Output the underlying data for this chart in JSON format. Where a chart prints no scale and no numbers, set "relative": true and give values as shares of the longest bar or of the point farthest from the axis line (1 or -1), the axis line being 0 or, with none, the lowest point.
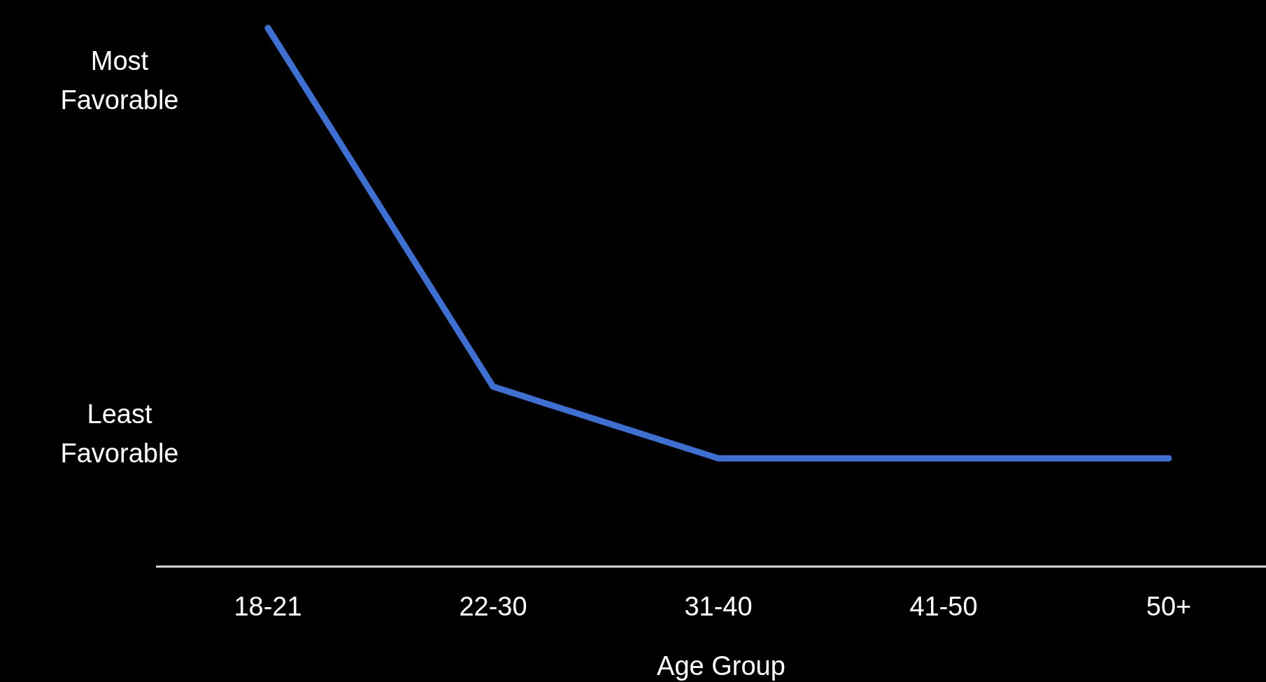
{
  "chart_data": {
    "type": "line",
    "relative": true,
    "xlabel": "Age Group",
    "categories": [
      "18-21",
      "22-30",
      "31-40",
      "41-50",
      "50+"
    ],
    "series": [
      {
        "color": "#3f6fd0",
        "values": [
          1,
          0.334,
          0.201,
          0.201,
          0.201
        ]
      }
    ],
    "annotations": [
      "Most Favorable",
      "Least Favorable"
    ],
    "marker": "none",
    "line_style": "solid"
  }
}
